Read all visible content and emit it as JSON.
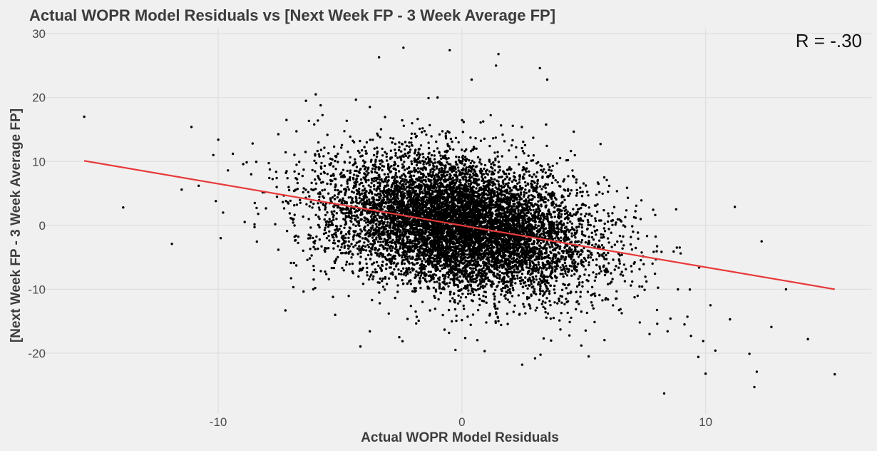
{
  "chart_data": {
    "type": "scatter",
    "title": "Actual WOPR Model Residuals vs [Next Week FP - 3 Week Average FP]",
    "xlabel": "Actual WOPR Model Residuals",
    "ylabel": "[Next Week FP - 3 Week Average FP]",
    "xlim": [
      -17.2,
      16.8
    ],
    "ylim": [
      -29.5,
      30.8
    ],
    "x_ticks": [
      -10,
      0,
      10
    ],
    "x_tick_labels": [
      "-10",
      "0",
      "10"
    ],
    "y_ticks": [
      -20,
      -10,
      0,
      10,
      20,
      30
    ],
    "y_tick_labels": [
      "-20",
      "-10",
      "0",
      "10",
      "20",
      "30"
    ],
    "grid": true,
    "annotation": "R = -.30",
    "annotation_position": "top-right",
    "colors": {
      "points": "#000000",
      "fit_line": "#e8393a",
      "background": "#f0f0f0",
      "grid": "#e0e0e0"
    },
    "fit_line": {
      "x": [
        -15.5,
        15.3
      ],
      "y": [
        10.1,
        -10.0
      ]
    },
    "dense_cloud": {
      "n": 9000,
      "x_sd": 2.6,
      "y_sd": 5.2,
      "correlation": -0.3,
      "seed": 7
    },
    "outliers": {
      "x": [
        -15.5,
        -13.9,
        -11.5,
        -11.1,
        -10.8,
        -10.2,
        -10.0,
        -9.8,
        -9.6,
        -9.4,
        -11.9,
        -9.9,
        -10.1,
        -8.5,
        -7.6,
        -7.2,
        -6.4,
        -6.0,
        -2.4,
        -0.5,
        -1.0,
        1.4,
        3.2,
        1.5,
        0.4,
        3.5,
        -3.4,
        11.2,
        13.3,
        14.2,
        15.3,
        12.3,
        12.7,
        12.1,
        11.0,
        10.0,
        8.3,
        10.4,
        9.9,
        9.4,
        7.7,
        7.3,
        5.2,
        4.9,
        3.0,
        12.0,
        10.2,
        11.8,
        -6.1,
        -5.2,
        -3.0
      ],
      "y": [
        17.0,
        2.8,
        5.6,
        15.4,
        6.2,
        11.0,
        13.4,
        2.0,
        8.6,
        11.2,
        -2.9,
        -2.0,
        3.8,
        3.5,
        6.0,
        16.5,
        19.5,
        20.5,
        27.8,
        27.4,
        20.0,
        25.0,
        24.6,
        26.8,
        22.8,
        22.8,
        26.3,
        2.9,
        -10.0,
        -17.8,
        -23.3,
        -2.5,
        -15.9,
        -22.9,
        -14.7,
        -23.2,
        -26.3,
        -19.6,
        -18.1,
        -17.3,
        -17.0,
        -15.2,
        -20.5,
        -18.8,
        -20.8,
        -25.3,
        -12.5,
        -20.1,
        -10.0,
        -14.0,
        -13.8
      ]
    }
  }
}
